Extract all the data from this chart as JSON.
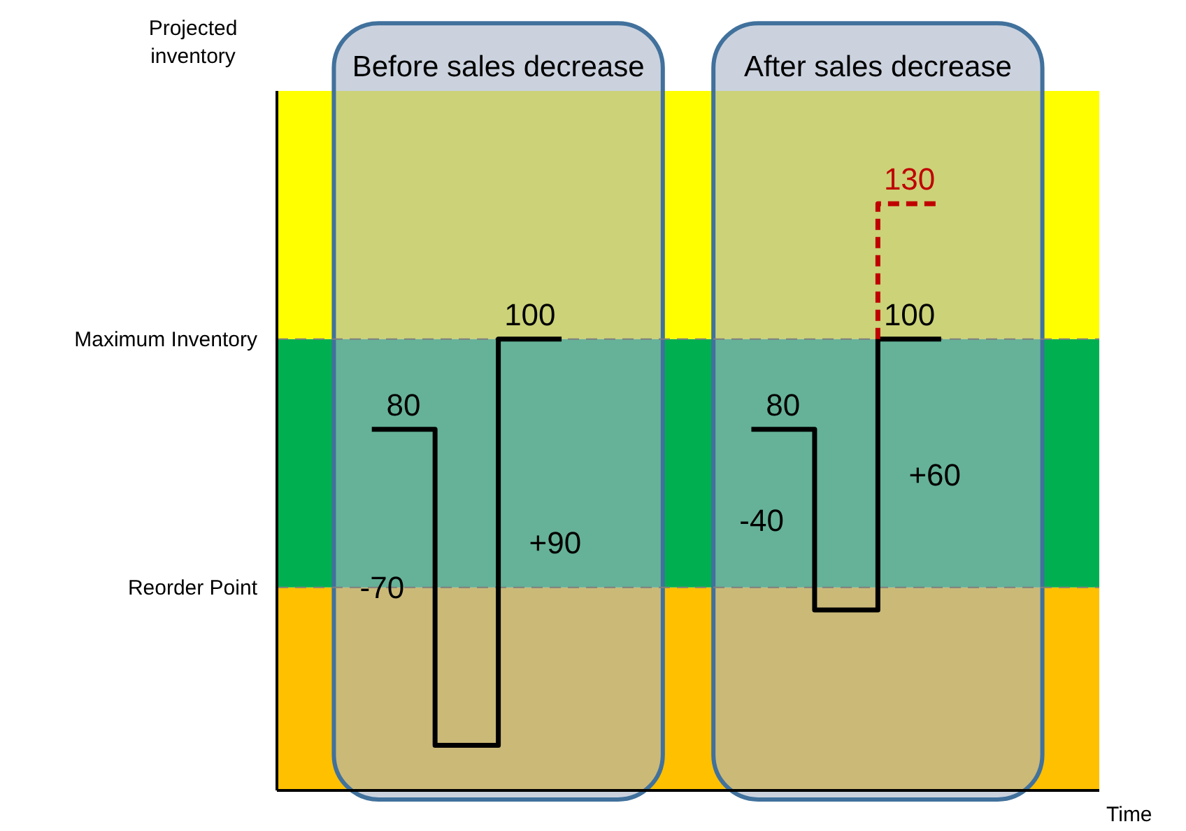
{
  "chart_data": {
    "type": "step",
    "ylabel": "Projected inventory",
    "xlabel": "Time",
    "annotations": [
      "Before sales decrease",
      "After sales decrease",
      "-70",
      "+90",
      "-40",
      "+60"
    ],
    "categories": [
      null,
      null,
      null,
      null,
      null,
      null,
      null,
      null,
      null,
      null,
      null,
      null,
      null
    ],
    "ylim": [
      0,
      155
    ],
    "bands": [
      {
        "axis": "y",
        "from": 0,
        "to": 45,
        "color": "#ffc000"
      },
      {
        "axis": "y",
        "from": 45,
        "to": 100,
        "color": "#00b050"
      },
      {
        "axis": "y",
        "from": 100,
        "to": 155,
        "color": "#ffff00"
      }
    ],
    "ref_lines": [
      {
        "axis": "y",
        "value": 45,
        "label": "Reorder Point",
        "color": "#7f7f7f",
        "line_style": "dashed"
      },
      {
        "axis": "y",
        "value": 100,
        "label": "Maximum Inventory",
        "color": "#7f7f7f",
        "line_style": "dashed"
      }
    ],
    "series": [
      {
        "color": "#000000",
        "values": [
          null,
          80,
          80,
          10,
          100,
          null,
          null,
          null,
          null,
          null,
          null,
          null,
          null
        ],
        "value_labels": [
          null,
          null,
          "80",
          null,
          "100",
          null,
          null,
          null,
          null,
          null,
          null,
          null,
          null
        ]
      },
      {
        "color": "#000000",
        "values": [
          null,
          null,
          null,
          null,
          null,
          null,
          null,
          80,
          80,
          40,
          100,
          null,
          null
        ],
        "value_labels": [
          null,
          null,
          null,
          null,
          null,
          null,
          null,
          null,
          "80",
          null,
          "100",
          null,
          null
        ]
      },
      {
        "color": "#c00000",
        "line_style": "dashed",
        "values": [
          null,
          null,
          null,
          null,
          null,
          null,
          null,
          null,
          null,
          100,
          130,
          null,
          null
        ],
        "value_labels": [
          null,
          null,
          null,
          null,
          null,
          null,
          null,
          null,
          null,
          null,
          "130",
          null,
          null
        ]
      }
    ]
  }
}
